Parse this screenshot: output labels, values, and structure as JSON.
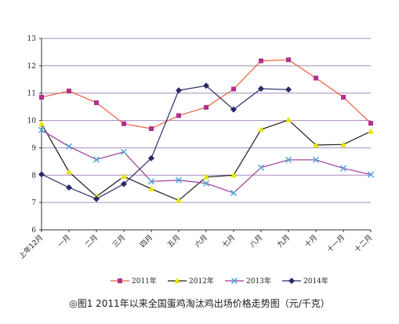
{
  "chart_data": {
    "type": "line",
    "categories": [
      "上年12月",
      "一月",
      "二月",
      "三月",
      "四月",
      "五月",
      "六月",
      "七月",
      "八月",
      "九月",
      "十月",
      "十一月",
      "十二月"
    ],
    "ylim": [
      6,
      13
    ],
    "yticks": [
      6,
      7,
      8,
      9,
      10,
      11,
      12,
      13
    ],
    "grid": true,
    "legend_position": "bottom",
    "series": [
      {
        "name": "2011年",
        "color": "#e8603c",
        "marker": "square",
        "marker_color": "#b0308a",
        "values": [
          10.85,
          11.08,
          10.65,
          9.88,
          9.7,
          10.18,
          10.48,
          11.15,
          12.18,
          12.22,
          11.55,
          10.85,
          9.9
        ]
      },
      {
        "name": "2012年",
        "color": "#1a1a1a",
        "marker": "triangle",
        "marker_color": "#e6e600",
        "values": [
          9.88,
          8.12,
          7.22,
          7.95,
          7.5,
          7.08,
          7.93,
          8.0,
          9.67,
          10.02,
          9.1,
          9.12,
          9.6
        ]
      },
      {
        "name": "2013年",
        "color": "#9b3c96",
        "marker": "x",
        "marker_color": "#4aa8d8",
        "values": [
          9.65,
          9.05,
          8.57,
          8.85,
          7.77,
          7.82,
          7.7,
          7.35,
          8.28,
          8.56,
          8.56,
          8.25,
          8.02
        ]
      },
      {
        "name": "2014年",
        "color": "#2a2a6a",
        "marker": "diamond",
        "marker_color": "#2a2a6a",
        "values": [
          8.03,
          7.55,
          7.13,
          7.68,
          8.62,
          11.1,
          11.27,
          10.4,
          11.16,
          11.13,
          null,
          null,
          null
        ]
      }
    ]
  },
  "caption": "◎图1  2011年以来全国蛋鸡淘汰鸡出场价格走势图（元/千克）"
}
